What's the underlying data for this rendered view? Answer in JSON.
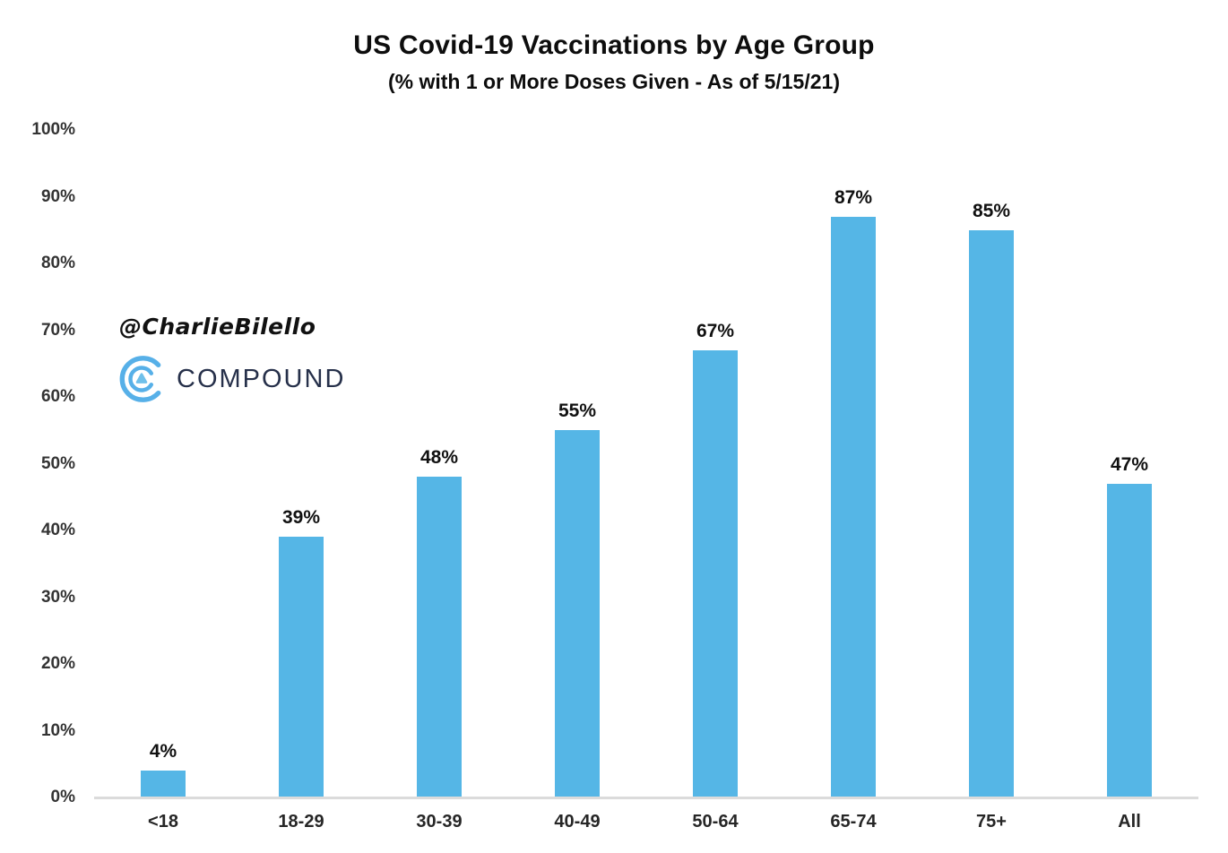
{
  "header": {
    "title": "US Covid-19 Vaccinations by Age Group",
    "subtitle": "(% with 1 or More Doses Given - As of 5/15/21)"
  },
  "watermark": {
    "handle": "@CharlieBilello",
    "logo_text": "COMPOUND",
    "logo_icon": "compound-arcs-c-icon"
  },
  "colors": {
    "bar": "#55b6e6",
    "baseline": "#dbdbdb",
    "logo_blue": "#57b0e8",
    "logo_triangle": "#6fc0ea",
    "logo_navy": "#26304a",
    "text": "#111111"
  },
  "chart_data": {
    "type": "bar",
    "title": "US Covid-19 Vaccinations by Age Group",
    "subtitle": "(% with 1 or More Doses Given - As of 5/15/21)",
    "categories": [
      "<18",
      "18-29",
      "30-39",
      "40-49",
      "50-64",
      "65-74",
      "75+",
      "All"
    ],
    "values": [
      4,
      39,
      48,
      55,
      67,
      87,
      85,
      47
    ],
    "value_labels": [
      "4%",
      "39%",
      "48%",
      "55%",
      "67%",
      "87%",
      "85%",
      "47%"
    ],
    "y_ticks": [
      "0%",
      "10%",
      "20%",
      "30%",
      "40%",
      "50%",
      "60%",
      "70%",
      "80%",
      "90%",
      "100%"
    ],
    "ylim": [
      0,
      100
    ],
    "xlabel": "",
    "ylabel": "",
    "grid": false,
    "legend": "none",
    "bar_color": "#55b6e6"
  }
}
